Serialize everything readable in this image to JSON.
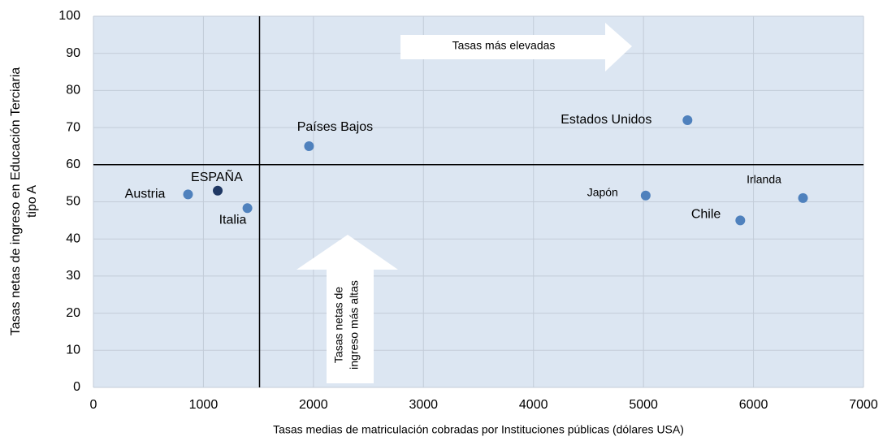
{
  "chart_data": {
    "type": "scatter",
    "x_label": "Tasas medias de matriculación cobradas por Instituciones públicas (dólares USA)",
    "y_label": [
      "Tasas netas de ingreso en Educación Terciaria",
      "tipo A"
    ],
    "labels": [
      "Austria",
      "ESPAÑA",
      "Italia",
      "Países Bajos",
      "Estados Unidos",
      "Japón",
      "Irlanda",
      "Chile"
    ],
    "x": [
      860,
      1130,
      1400,
      1960,
      5400,
      5020,
      6450,
      5880
    ],
    "values": [
      52,
      53,
      48.3,
      65,
      72,
      51.7,
      51,
      45
    ],
    "colors": [
      "#4f81bd",
      "#1f3864",
      "#4f81bd",
      "#4f81bd",
      "#4f81bd",
      "#4f81bd",
      "#4f81bd",
      "#4f81bd"
    ],
    "reference_lines": {
      "x": 1510,
      "y": 60
    },
    "annotations": {
      "right_arrow": "Tasas más elevadas",
      "up_arrow": [
        "Tasas netas de",
        "ingreso más altas"
      ]
    },
    "xlim": [
      0,
      7000
    ],
    "xticks": [
      0,
      1000,
      2000,
      3000,
      4000,
      5000,
      6000,
      7000
    ],
    "ylim": [
      0,
      100
    ],
    "yticks": [
      0,
      10,
      20,
      30,
      40,
      50,
      60,
      70,
      80,
      90,
      100
    ],
    "grid": true
  }
}
